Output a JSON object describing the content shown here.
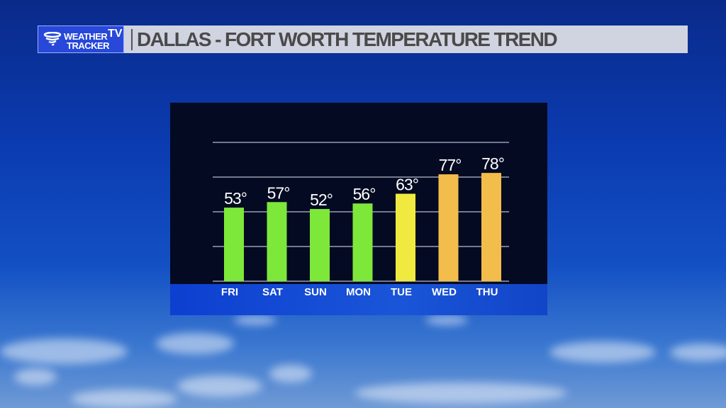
{
  "header": {
    "logo_text_line1": "WEATHER",
    "logo_text_line2": "TRACKER",
    "logo_badge": "TV",
    "title": "DALLAS - FORT WORTH TEMPERATURE TREND"
  },
  "colors": {
    "cool": "#7de83a",
    "mild": "#f0ea40",
    "warm": "#f2bd4a",
    "title_bar": "#d0d3e0",
    "logo_blue": "#2748d8"
  },
  "chart_data": {
    "type": "bar",
    "title": "DALLAS - FORT WORTH TEMPERATURE TREND",
    "categories": [
      "FRI",
      "SAT",
      "SUN",
      "MON",
      "TUE",
      "WED",
      "THU"
    ],
    "values": [
      53,
      57,
      52,
      56,
      63,
      77,
      78
    ],
    "labels": [
      "53°",
      "57°",
      "52°",
      "56°",
      "63°",
      "77°",
      "78°"
    ],
    "bar_colors": [
      "#7de83a",
      "#7de83a",
      "#7de83a",
      "#7de83a",
      "#f0ea40",
      "#f2bd4a",
      "#f2bd4a"
    ],
    "ylim": [
      0,
      100
    ],
    "gridlines": [
      25,
      50,
      75,
      100
    ],
    "grid": true,
    "unit": "°F"
  }
}
